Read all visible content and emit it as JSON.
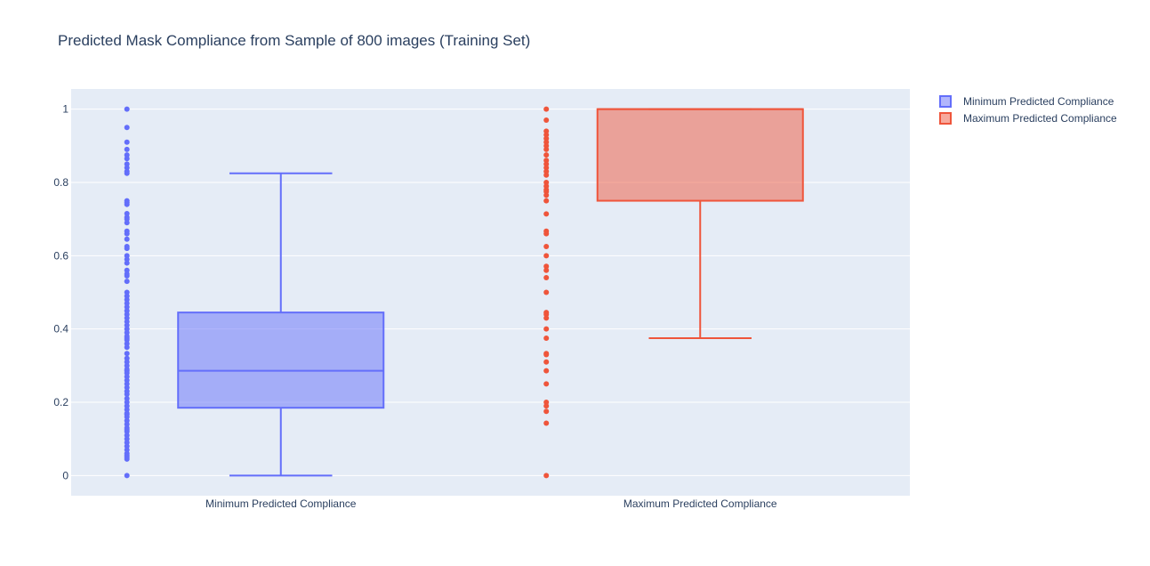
{
  "chart_data": {
    "type": "box",
    "title": "Predicted Mask Compliance from Sample of 800 images (Training Set)",
    "xlabel": "",
    "ylabel": "",
    "categories": [
      "Minimum Predicted Compliance",
      "Maximum Predicted Compliance"
    ],
    "y_ticks": [
      0,
      0.2,
      0.4,
      0.6,
      0.8,
      1
    ],
    "y_tick_labels": [
      "0",
      "0.2",
      "0.4",
      "0.6",
      "0.8",
      "1"
    ],
    "ylim": [
      -0.055,
      1.055
    ],
    "grid": true,
    "legend_position": "top-right",
    "series": [
      {
        "name": "Minimum Predicted Compliance",
        "color": "#636efa",
        "box": {
          "lowerfence": 0,
          "q1": 0.185,
          "median": 0.286,
          "q3": 0.445,
          "upperfence": 0.825
        },
        "points": [
          0,
          1,
          0.95,
          0.91,
          0.89,
          0.875,
          0.865,
          0.85,
          0.84,
          0.83,
          0.825,
          0.75,
          0.745,
          0.74,
          0.715,
          0.705,
          0.7,
          0.69,
          0.667,
          0.66,
          0.645,
          0.625,
          0.62,
          0.6,
          0.59,
          0.58,
          0.56,
          0.55,
          0.545,
          0.53,
          0.5,
          0.49,
          0.48,
          0.47,
          0.46,
          0.45,
          0.44,
          0.43,
          0.42,
          0.41,
          0.4,
          0.39,
          0.38,
          0.375,
          0.37,
          0.36,
          0.35,
          0.333,
          0.32,
          0.31,
          0.3,
          0.29,
          0.286,
          0.28,
          0.27,
          0.26,
          0.25,
          0.24,
          0.23,
          0.222,
          0.21,
          0.2,
          0.19,
          0.18,
          0.17,
          0.167,
          0.16,
          0.15,
          0.14,
          0.13,
          0.125,
          0.12,
          0.11,
          0.1,
          0.09,
          0.08,
          0.07,
          0.06,
          0.055,
          0.05,
          0.045
        ]
      },
      {
        "name": "Maximum Predicted Compliance",
        "color": "#ef553b",
        "box": {
          "lowerfence": 0.375,
          "q1": 0.75,
          "median": 1,
          "q3": 1,
          "upperfence": 1
        },
        "points": [
          1,
          0.97,
          0.94,
          0.93,
          0.92,
          0.91,
          0.9,
          0.89,
          0.875,
          0.86,
          0.85,
          0.84,
          0.83,
          0.82,
          0.8,
          0.79,
          0.78,
          0.775,
          0.765,
          0.75,
          0.714,
          0.667,
          0.66,
          0.625,
          0.6,
          0.571,
          0.56,
          0.54,
          0.5,
          0.445,
          0.44,
          0.43,
          0.4,
          0.375,
          0.333,
          0.33,
          0.31,
          0.286,
          0.25,
          0.2,
          0.19,
          0.175,
          0.143,
          0
        ]
      }
    ]
  }
}
